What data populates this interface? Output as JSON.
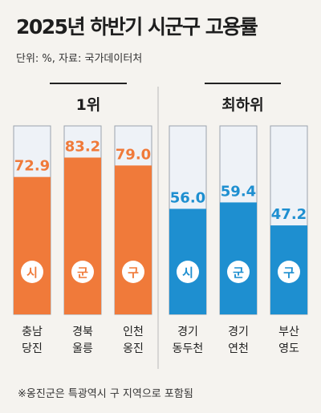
{
  "title": "2025년 하반기 시군구 고용률",
  "subtitle": "단위: %, 자료: 국가데이터처",
  "footnote": "※옹진군은 특광역시 구 지역으로 포함됨",
  "colors": {
    "top_group": "#f07a3a",
    "bottom_group": "#1e8fd0",
    "bar_background": "#eef2f7",
    "bar_border": "#9aa3ad",
    "badge": "#ffffff"
  },
  "chart_data": {
    "type": "bar",
    "ylim": [
      0,
      100
    ],
    "grid": false,
    "groups": [
      {
        "label": "1위",
        "color": "#f07a3a",
        "bars": [
          {
            "badge": "시",
            "category": [
              "충남",
              "당진"
            ],
            "value": 72.9
          },
          {
            "badge": "군",
            "category": [
              "경북",
              "울릉"
            ],
            "value": 83.2
          },
          {
            "badge": "구",
            "category": [
              "인천",
              "옹진"
            ],
            "value": 79.0
          }
        ]
      },
      {
        "label": "최하위",
        "color": "#1e8fd0",
        "bars": [
          {
            "badge": "시",
            "category": [
              "경기",
              "동두천"
            ],
            "value": 56.0
          },
          {
            "badge": "군",
            "category": [
              "경기",
              "연천"
            ],
            "value": 59.4
          },
          {
            "badge": "구",
            "category": [
              "부산",
              "영도"
            ],
            "value": 47.2
          }
        ]
      }
    ]
  }
}
